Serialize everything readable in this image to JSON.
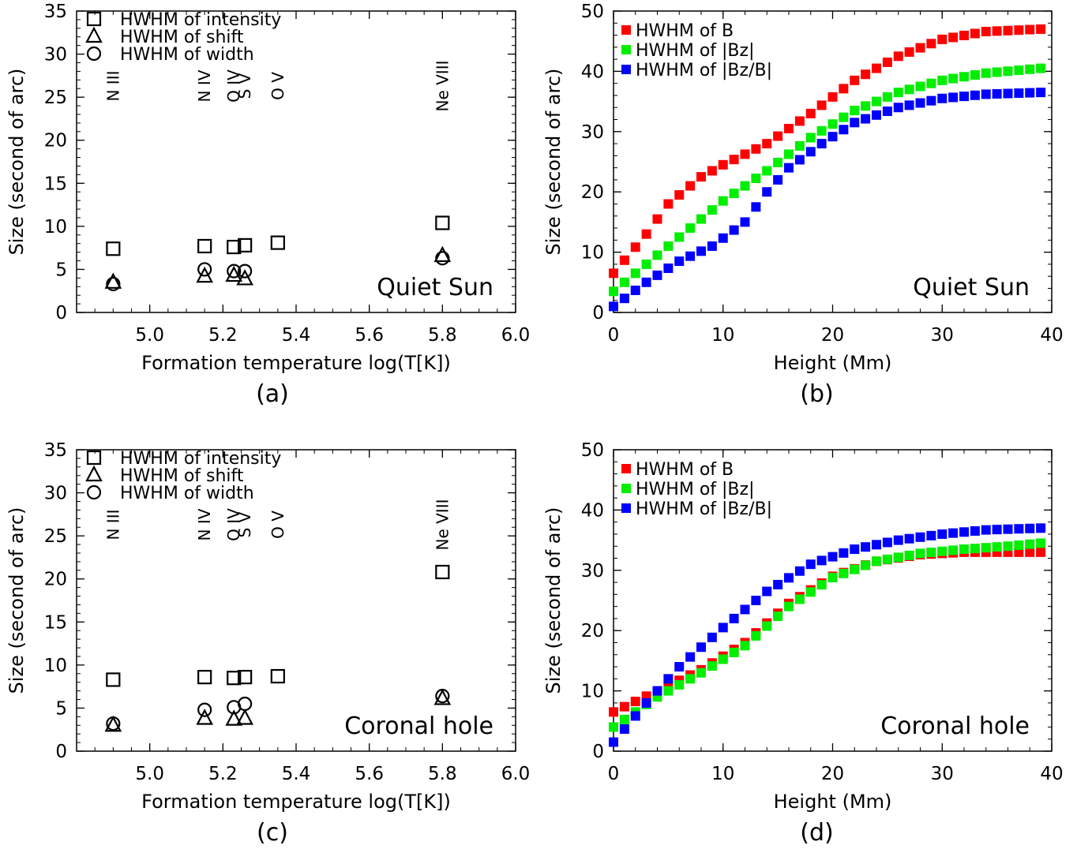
{
  "chart_data": [
    {
      "id": "a",
      "type": "scatter",
      "panel_label": "(a)",
      "xlabel": "Formation temperature log(T[K])",
      "ylabel": "Size (second of arc)",
      "xlim": [
        4.8,
        6.0
      ],
      "ylim": [
        0,
        35
      ],
      "xticks": [
        "5.0",
        "5.2",
        "5.4",
        "5.6",
        "5.8",
        "6.0"
      ],
      "yticks": [
        "0",
        "5",
        "10",
        "15",
        "20",
        "25",
        "30",
        "35"
      ],
      "annotation": "Quiet Sun",
      "legend_position": "top-left",
      "ions": [
        {
          "label": "N III",
          "x": 4.9
        },
        {
          "label": "N IV",
          "x": 5.15
        },
        {
          "label": "O IV",
          "x": 5.23
        },
        {
          "label": "S V",
          "x": 5.26
        },
        {
          "label": "O V",
          "x": 5.35
        },
        {
          "label": "Ne VIII",
          "x": 5.8
        }
      ],
      "series": [
        {
          "name": "HWHM of intensity",
          "marker": "square",
          "x": [
            4.9,
            5.15,
            5.23,
            5.26,
            5.35,
            5.8
          ],
          "y": [
            7.4,
            7.7,
            7.6,
            7.8,
            8.1,
            10.4
          ]
        },
        {
          "name": "HWHM of shift",
          "marker": "triangle",
          "x": [
            4.9,
            5.15,
            5.23,
            5.26,
            5.8
          ],
          "y": [
            3.5,
            4.2,
            4.3,
            3.9,
            6.6
          ]
        },
        {
          "name": "HWHM of width",
          "marker": "circle",
          "x": [
            4.9,
            5.15,
            5.23,
            5.26,
            5.8
          ],
          "y": [
            3.3,
            5.0,
            4.8,
            4.8,
            6.3
          ]
        }
      ]
    },
    {
      "id": "b",
      "type": "scatter",
      "panel_label": "(b)",
      "xlabel": "Height (Mm)",
      "ylabel": "Size (second of arc)",
      "xlim": [
        0,
        40
      ],
      "ylim": [
        0,
        50
      ],
      "xticks": [
        "0",
        "10",
        "20",
        "30",
        "40"
      ],
      "yticks": [
        "0",
        "10",
        "20",
        "30",
        "40",
        "50"
      ],
      "annotation": "Quiet Sun",
      "legend_position": "top-left",
      "series": [
        {
          "name": "HWHM of B",
          "color": "#ff0000",
          "points": [
            [
              0,
              6.5
            ],
            [
              3,
              13
            ],
            [
              5,
              18
            ],
            [
              8,
              22.5
            ],
            [
              10,
              24.5
            ],
            [
              14,
              28
            ],
            [
              18,
              33
            ],
            [
              22,
              38.5
            ],
            [
              26,
              42.5
            ],
            [
              30,
              45.3
            ],
            [
              34,
              46.6
            ],
            [
              39,
              47
            ]
          ]
        },
        {
          "name": "HWHM of |Bz|",
          "color": "#00ee00",
          "points": [
            [
              0,
              3.5
            ],
            [
              3,
              8
            ],
            [
              6,
              12.5
            ],
            [
              10,
              18.5
            ],
            [
              14,
              23.5
            ],
            [
              18,
              29
            ],
            [
              22,
              33.5
            ],
            [
              26,
              36.5
            ],
            [
              30,
              38.5
            ],
            [
              34,
              39.7
            ],
            [
              39,
              40.5
            ]
          ]
        },
        {
          "name": "HWHM of |Bz/B|",
          "color": "#0000ff",
          "points": [
            [
              0,
              1
            ],
            [
              3,
              5
            ],
            [
              6,
              8.5
            ],
            [
              9,
              11
            ],
            [
              12,
              15
            ],
            [
              14,
              20
            ],
            [
              16,
              24
            ],
            [
              19,
              28
            ],
            [
              22,
              31.5
            ],
            [
              26,
              34
            ],
            [
              30,
              35.5
            ],
            [
              34,
              36.2
            ],
            [
              39,
              36.5
            ]
          ]
        }
      ]
    },
    {
      "id": "c",
      "type": "scatter",
      "panel_label": "(c)",
      "xlabel": "Formation temperature log(T[K])",
      "ylabel": "Size (second of arc)",
      "xlim": [
        4.8,
        6.0
      ],
      "ylim": [
        0,
        35
      ],
      "xticks": [
        "5.0",
        "5.2",
        "5.4",
        "5.6",
        "5.8",
        "6.0"
      ],
      "yticks": [
        "0",
        "5",
        "10",
        "15",
        "20",
        "25",
        "30",
        "35"
      ],
      "annotation": "Coronal hole",
      "legend_position": "top-left",
      "ions": [
        {
          "label": "N III",
          "x": 4.9
        },
        {
          "label": "N IV",
          "x": 5.15
        },
        {
          "label": "O IV",
          "x": 5.23
        },
        {
          "label": "S V",
          "x": 5.26
        },
        {
          "label": "O V",
          "x": 5.35
        },
        {
          "label": "Ne VIII",
          "x": 5.8
        }
      ],
      "series": [
        {
          "name": "HWHM of intensity",
          "marker": "square",
          "x": [
            4.9,
            5.15,
            5.23,
            5.26,
            5.35,
            5.8
          ],
          "y": [
            8.3,
            8.6,
            8.5,
            8.6,
            8.7,
            20.8
          ]
        },
        {
          "name": "HWHM of shift",
          "marker": "triangle",
          "x": [
            4.9,
            5.15,
            5.23,
            5.26,
            5.8
          ],
          "y": [
            3.0,
            3.8,
            3.7,
            3.8,
            6.1
          ]
        },
        {
          "name": "HWHM of width",
          "marker": "circle",
          "x": [
            4.9,
            5.15,
            5.23,
            5.26,
            5.8
          ],
          "y": [
            3.2,
            4.8,
            5.1,
            5.5,
            6.4
          ]
        }
      ]
    },
    {
      "id": "d",
      "type": "scatter",
      "panel_label": "(d)",
      "xlabel": "Height (Mm)",
      "ylabel": "Size (second of arc)",
      "xlim": [
        0,
        40
      ],
      "ylim": [
        0,
        50
      ],
      "xticks": [
        "0",
        "10",
        "20",
        "30",
        "40"
      ],
      "yticks": [
        "0",
        "10",
        "20",
        "30",
        "40",
        "50"
      ],
      "annotation": "Coronal hole",
      "legend_position": "top-left",
      "series": [
        {
          "name": "HWHM of B",
          "color": "#ff0000",
          "points": [
            [
              0,
              6.5
            ],
            [
              4,
              10
            ],
            [
              8,
              13.5
            ],
            [
              12,
              18
            ],
            [
              16,
              24.5
            ],
            [
              20,
              29
            ],
            [
              24,
              31.5
            ],
            [
              28,
              32.6
            ],
            [
              32,
              33
            ],
            [
              39,
              33
            ]
          ]
        },
        {
          "name": "HWHM of |Bz|",
          "color": "#00ee00",
          "points": [
            [
              0,
              4
            ],
            [
              4,
              9
            ],
            [
              8,
              13
            ],
            [
              12,
              17.5
            ],
            [
              16,
              24
            ],
            [
              20,
              28.8
            ],
            [
              24,
              31.5
            ],
            [
              28,
              32.8
            ],
            [
              32,
              33.5
            ],
            [
              36,
              34
            ],
            [
              39,
              34.5
            ]
          ]
        },
        {
          "name": "HWHM of |Bz/B|",
          "color": "#0000ff",
          "points": [
            [
              0,
              1.5
            ],
            [
              3,
              8
            ],
            [
              6,
              14
            ],
            [
              10,
              20.5
            ],
            [
              14,
              26.5
            ],
            [
              18,
              31
            ],
            [
              22,
              33.5
            ],
            [
              26,
              35
            ],
            [
              30,
              36
            ],
            [
              34,
              36.7
            ],
            [
              39,
              37
            ]
          ]
        }
      ]
    }
  ]
}
